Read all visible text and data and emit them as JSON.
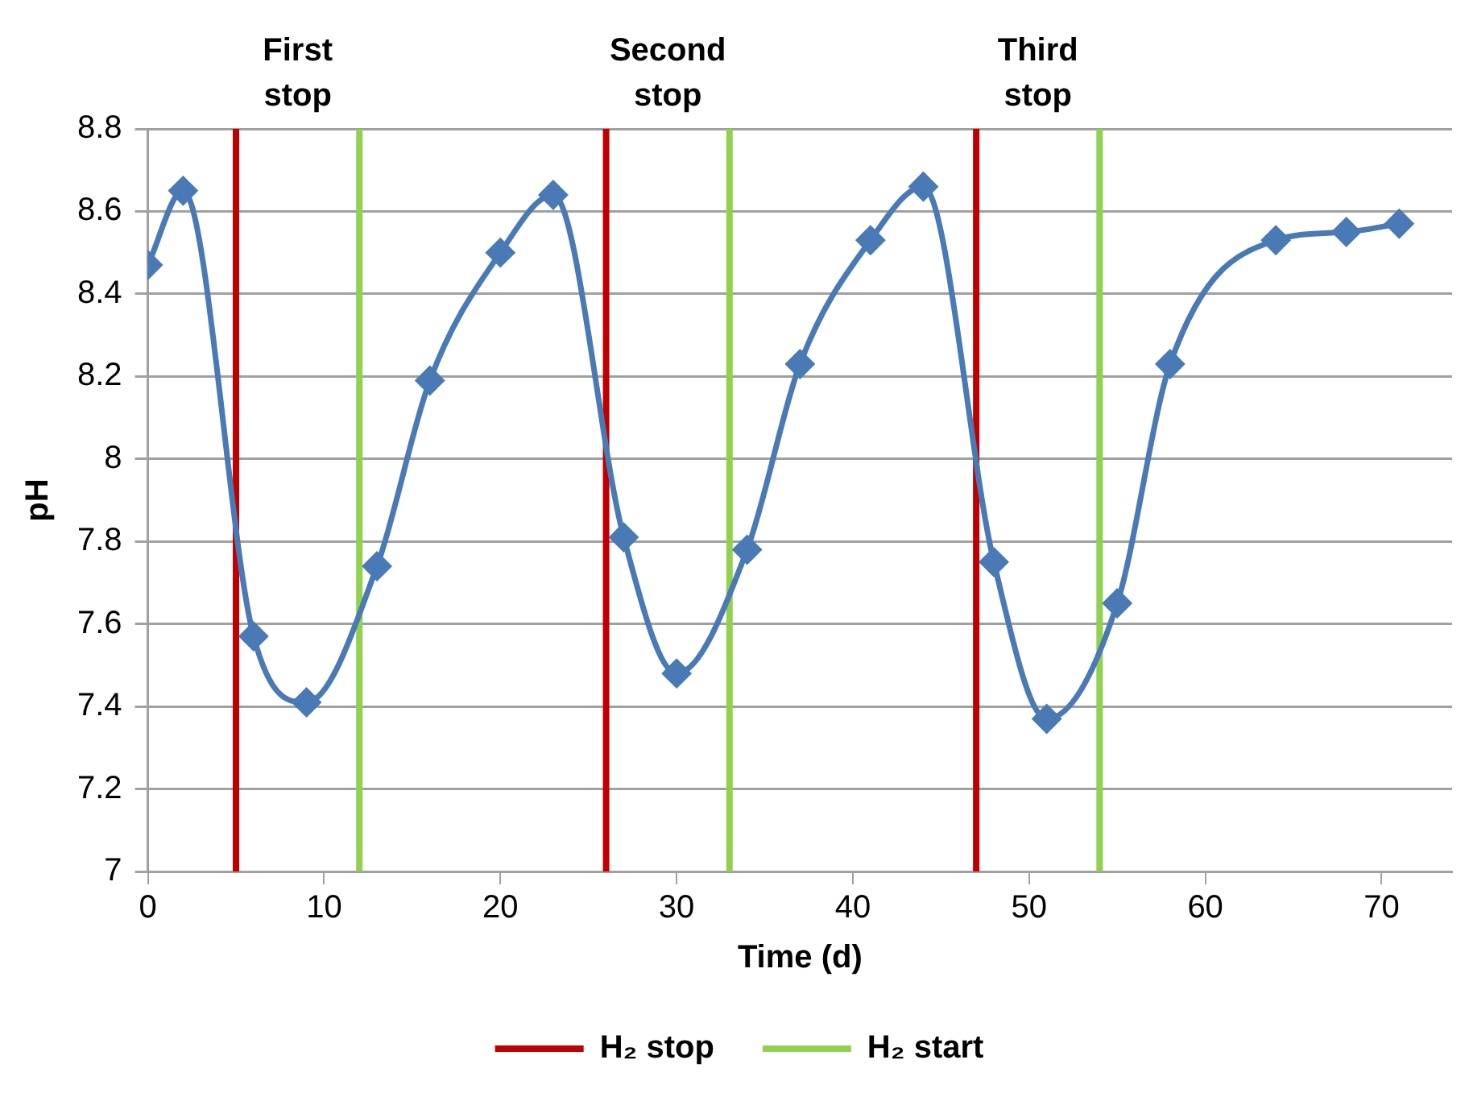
{
  "chart_data": {
    "type": "line",
    "xlabel": "Time (d)",
    "ylabel": "pH",
    "xlim": [
      0,
      74
    ],
    "xticks": [
      0,
      10,
      20,
      30,
      40,
      50,
      60,
      70
    ],
    "ylim": [
      7,
      8.8
    ],
    "yticks": [
      7,
      7.2,
      7.4,
      7.6,
      7.8,
      8,
      8.2,
      8.4,
      8.6,
      8.8
    ],
    "grid": "y",
    "legend": "bottom",
    "marker": "diamond",
    "line_style": "solid",
    "series": [
      {
        "color": "#4a7ab5",
        "x": [
          0,
          2,
          6,
          9,
          13,
          16,
          20,
          23,
          27,
          30,
          34,
          37,
          41,
          44,
          48,
          51,
          55,
          58,
          64,
          68,
          71
        ],
        "values": [
          8.47,
          8.65,
          7.57,
          7.41,
          7.74,
          8.19,
          8.5,
          8.64,
          7.81,
          7.48,
          7.78,
          8.23,
          8.53,
          8.66,
          7.75,
          7.37,
          7.65,
          8.23,
          8.53,
          8.55,
          8.57
        ]
      }
    ],
    "ref_lines": [
      {
        "axis": "x",
        "value": 5,
        "label": "H₂ stop",
        "color": "#c00000"
      },
      {
        "axis": "x",
        "value": 12,
        "label": "H₂ start",
        "color": "#92d050"
      },
      {
        "axis": "x",
        "value": 26,
        "color": "#c00000"
      },
      {
        "axis": "x",
        "value": 33,
        "color": "#92d050"
      },
      {
        "axis": "x",
        "value": 47,
        "color": "#c00000"
      },
      {
        "axis": "x",
        "value": 54,
        "color": "#92d050"
      }
    ],
    "annotations": [
      "First stop",
      "Second stop",
      "Third stop"
    ]
  }
}
